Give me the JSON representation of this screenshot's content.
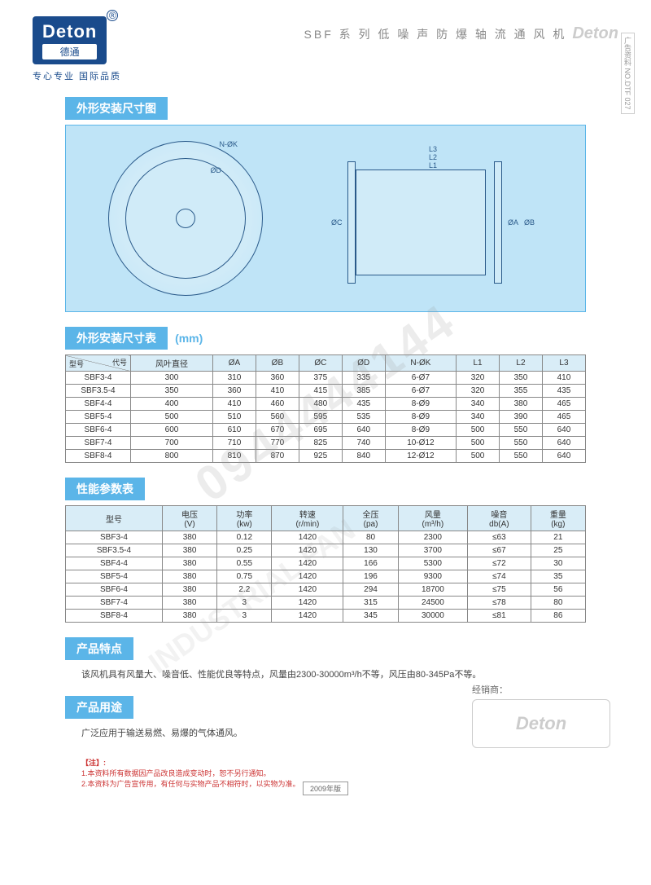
{
  "brand": {
    "logo_main": "Deton",
    "logo_sub": "德通",
    "registered": "®",
    "tagline": "专心专业  国际品质"
  },
  "header": {
    "product_title": "SBF 系 列 低 噪 声 防 爆 轴 流 通 风 机",
    "watermark_logo": "Deton",
    "side_label": "广告资料 NO.DTF 027"
  },
  "sections": {
    "diagram_title": "外形安装尺寸图",
    "dim_table_title": "外形安装尺寸表",
    "dim_unit": "(mm)",
    "perf_table_title": "性能参数表",
    "features_title": "产品特点",
    "usage_title": "产品用途"
  },
  "diagram_labels": {
    "nk": "N-ØK",
    "d": "ØD",
    "c": "ØC",
    "a": "ØA",
    "b": "ØB",
    "l1": "L1",
    "l2": "L2",
    "l3": "L3"
  },
  "dim_table": {
    "header_diag_top": "代号",
    "header_diag_bottom": "型号",
    "columns": [
      "风叶直径",
      "ØA",
      "ØB",
      "ØC",
      "ØD",
      "N-ØK",
      "L1",
      "L2",
      "L3"
    ],
    "rows": [
      {
        "model": "SBF3-4",
        "vals": [
          "300",
          "310",
          "360",
          "375",
          "335",
          "6-Ø7",
          "320",
          "350",
          "410"
        ]
      },
      {
        "model": "SBF3.5-4",
        "vals": [
          "350",
          "360",
          "410",
          "415",
          "385",
          "6-Ø7",
          "320",
          "355",
          "435"
        ]
      },
      {
        "model": "SBF4-4",
        "vals": [
          "400",
          "410",
          "460",
          "480",
          "435",
          "8-Ø9",
          "340",
          "380",
          "465"
        ]
      },
      {
        "model": "SBF5-4",
        "vals": [
          "500",
          "510",
          "560",
          "595",
          "535",
          "8-Ø9",
          "340",
          "390",
          "465"
        ]
      },
      {
        "model": "SBF6-4",
        "vals": [
          "600",
          "610",
          "670",
          "695",
          "640",
          "8-Ø9",
          "500",
          "550",
          "640"
        ]
      },
      {
        "model": "SBF7-4",
        "vals": [
          "700",
          "710",
          "770",
          "825",
          "740",
          "10-Ø12",
          "500",
          "550",
          "640"
        ]
      },
      {
        "model": "SBF8-4",
        "vals": [
          "800",
          "810",
          "870",
          "925",
          "840",
          "12-Ø12",
          "500",
          "550",
          "640"
        ]
      }
    ]
  },
  "perf_table": {
    "columns": [
      "型号",
      "电压\n(V)",
      "功率\n(kw)",
      "转速\n(r/min)",
      "全压\n(pa)",
      "风量\n(m³/h)",
      "噪音\ndb(A)",
      "重量\n(kg)"
    ],
    "rows": [
      [
        "SBF3-4",
        "380",
        "0.12",
        "1420",
        "80",
        "2300",
        "≤63",
        "21"
      ],
      [
        "SBF3.5-4",
        "380",
        "0.25",
        "1420",
        "130",
        "3700",
        "≤67",
        "25"
      ],
      [
        "SBF4-4",
        "380",
        "0.55",
        "1420",
        "166",
        "5300",
        "≤72",
        "30"
      ],
      [
        "SBF5-4",
        "380",
        "0.75",
        "1420",
        "196",
        "9300",
        "≤74",
        "35"
      ],
      [
        "SBF6-4",
        "380",
        "2.2",
        "1420",
        "294",
        "18700",
        "≤75",
        "56"
      ],
      [
        "SBF7-4",
        "380",
        "3",
        "1420",
        "315",
        "24500",
        "≤78",
        "80"
      ],
      [
        "SBF8-4",
        "380",
        "3",
        "1420",
        "345",
        "30000",
        "≤81",
        "86"
      ]
    ]
  },
  "features_text": "该风机具有风量大、噪音低、性能优良等特点，风量由2300-30000m³/h不等，风压由80-345Pa不等。",
  "usage_text": "广泛应用于输送易燃、易爆的气体通风。",
  "dealer": {
    "label": "经销商：",
    "stamp": "Deton"
  },
  "notes": {
    "title": "【注】:",
    "lines": [
      "1.本资料所有数据因产品改良造成变动时，恕不另行通知。",
      "2.本资料为广告宣传用，有任何与实物产品不相符时，以实物为准。"
    ]
  },
  "footer_year": "2009年版",
  "watermark_phone": "0944444144",
  "watermark_side": "INDUSTRIAL FAN"
}
